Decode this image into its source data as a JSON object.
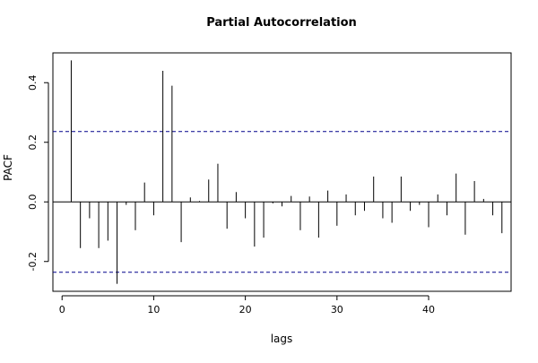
{
  "chart_data": {
    "type": "bar",
    "title": "Partial Autocorrelation",
    "xlabel": "lags",
    "ylabel": "PACF",
    "xlim": [
      -1,
      49
    ],
    "ylim": [
      -0.3,
      0.5
    ],
    "x_ticks": [
      0,
      10,
      20,
      30,
      40
    ],
    "y_ticks": [
      -0.2,
      0.0,
      0.2,
      0.4
    ],
    "y_tick_labels": [
      "-0.2",
      "0.0",
      "0.2",
      "0.4"
    ],
    "x_tick_labels": [
      "0",
      "10",
      "20",
      "30",
      "40"
    ],
    "confidence_band": 0.236,
    "grid": false,
    "lags": [
      1,
      2,
      3,
      4,
      5,
      6,
      7,
      8,
      9,
      10,
      11,
      12,
      13,
      14,
      15,
      16,
      17,
      18,
      19,
      20,
      21,
      22,
      23,
      24,
      25,
      26,
      27,
      28,
      29,
      30,
      31,
      32,
      33,
      34,
      35,
      36,
      37,
      38,
      39,
      40,
      41,
      42,
      43,
      44,
      45,
      46,
      47,
      48
    ],
    "values": [
      0.475,
      -0.155,
      -0.055,
      -0.155,
      -0.13,
      -0.275,
      -0.01,
      -0.095,
      0.065,
      -0.045,
      0.44,
      0.39,
      -0.135,
      0.015,
      0.003,
      0.075,
      0.128,
      -0.09,
      0.033,
      -0.055,
      -0.15,
      -0.12,
      -0.005,
      -0.015,
      0.02,
      -0.095,
      0.018,
      -0.12,
      0.038,
      -0.08,
      0.025,
      -0.045,
      -0.03,
      0.085,
      -0.055,
      -0.07,
      0.085,
      -0.03,
      -0.01,
      -0.085,
      0.025,
      -0.045,
      0.095,
      -0.11,
      0.07,
      0.01,
      -0.045,
      -0.105
    ],
    "colors": {
      "bars": "#000000",
      "confidence_line": "#00008b",
      "axes": "#000000"
    }
  }
}
